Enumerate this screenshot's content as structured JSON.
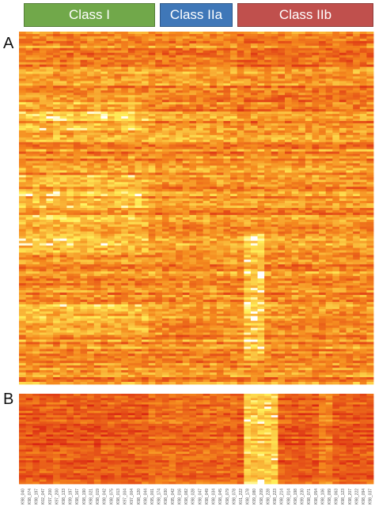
{
  "classes": [
    {
      "label": "Class I",
      "color": "#71a84a"
    },
    {
      "label": "Class IIa",
      "color": "#3f77b8"
    },
    {
      "label": "Class IIb",
      "color": "#c0504d"
    }
  ],
  "panels": {
    "a": "A",
    "b": "B"
  },
  "colors": {
    "low": "#d81e12",
    "mid": "#f58a1e",
    "high": "#fff05a",
    "max": "#ffffff"
  },
  "chart_data": {
    "type": "heatmap",
    "panels": [
      "A",
      "B"
    ],
    "class_groups": [
      {
        "name": "Class I",
        "n_samples": 19
      },
      {
        "name": "Class IIa",
        "n_samples": 13
      },
      {
        "name": "Class IIb",
        "n_samples": 20
      }
    ],
    "column_labels": [
      "K98_040",
      "K98_074",
      "K98_197",
      "K02_047",
      "K97_200",
      "K97_200",
      "K98_133",
      "K99_197",
      "K98_167",
      "K98_190",
      "K98_021",
      "K98_019",
      "K98_042",
      "K98_075",
      "K98_013",
      "K97_004",
      "K97_004",
      "K98_120",
      "K98_044",
      "K95_001",
      "K98_174",
      "K98_030",
      "K95_042",
      "K98_016",
      "K98_082",
      "K98_028",
      "K98_047",
      "K98_049",
      "K98_034",
      "K98_045",
      "K98_079",
      "K98_078",
      "K01_222",
      "K98_178",
      "K99_080",
      "K98_209",
      "K98_228",
      "K98_223",
      "K98_214",
      "K98_014",
      "K98_198",
      "K99_230",
      "K98_071",
      "K98_054",
      "K98_106",
      "K98_099",
      "K98_063",
      "K98_123",
      "K98_207",
      "K98_222",
      "K98_094",
      "K98_037"
    ],
    "notes": "Color scale: red = low, orange = intermediate, yellow/white = high"
  }
}
